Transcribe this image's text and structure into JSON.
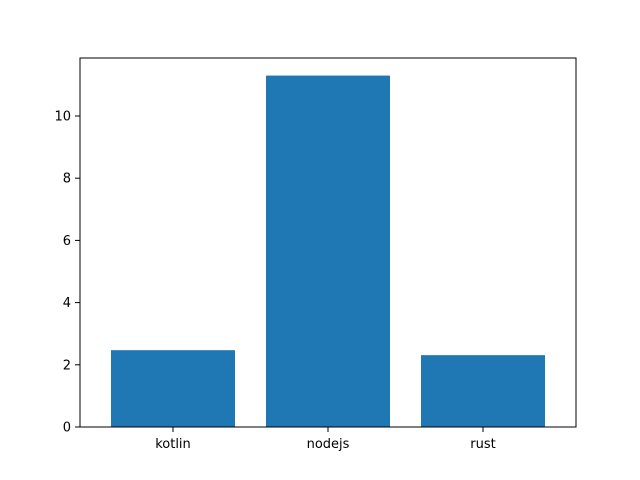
{
  "chart_data": {
    "type": "bar",
    "title": "",
    "xlabel": "",
    "ylabel": "",
    "categories": [
      "kotlin",
      "nodejs",
      "rust"
    ],
    "values": [
      2.47,
      11.3,
      2.31
    ],
    "ylim": [
      0,
      11.865
    ],
    "yticks": [
      0,
      2,
      4,
      6,
      8,
      10
    ],
    "ytick_labels": [
      "0",
      "2",
      "4",
      "6",
      "8",
      "10"
    ],
    "bar_color": "#1f77b4",
    "grid": false,
    "legend": "none"
  }
}
